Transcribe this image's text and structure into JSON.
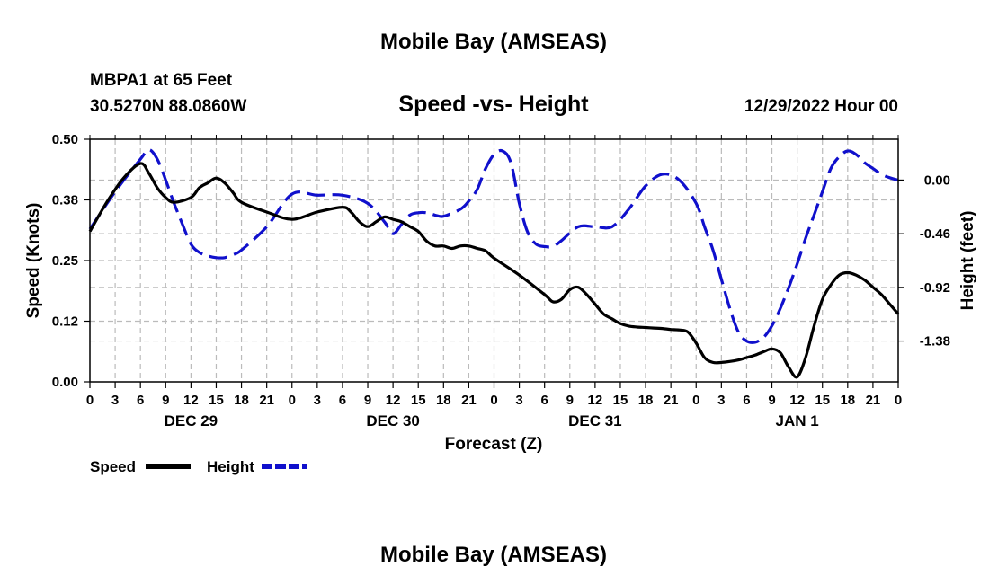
{
  "header": {
    "title": "Mobile Bay (AMSEAS)",
    "station": "MBPA1 at 65 Feet",
    "location": "30.5270N  88.0860W",
    "chart_title": "Speed -vs- Height",
    "run_time": "12/29/2022 Hour 00"
  },
  "footer": {
    "title": "Mobile Bay (AMSEAS)"
  },
  "colors": {
    "speed": "#000000",
    "height": "#1010cc",
    "grid": "#bbbbbb"
  },
  "chart_data": {
    "type": "line",
    "title": "Speed -vs- Height",
    "xlabel": "Forecast (Z)",
    "ylabel": "Speed (Knots)",
    "y2label": "Height (feet)",
    "grid": true,
    "legend_position": "bottom-left",
    "xlim": [
      0,
      96
    ],
    "ylim": [
      0,
      0.5
    ],
    "y2lim": [
      -1.73,
      0.35
    ],
    "x_tick_labels": [
      "0",
      "3",
      "6",
      "9",
      "12",
      "15",
      "18",
      "21",
      "0",
      "3",
      "6",
      "9",
      "12",
      "15",
      "18",
      "21",
      "0",
      "3",
      "6",
      "9",
      "12",
      "15",
      "18",
      "21",
      "0",
      "3",
      "6",
      "9",
      "12",
      "15",
      "18",
      "21",
      "0"
    ],
    "day_labels": [
      {
        "x": 12,
        "label": "DEC 29"
      },
      {
        "x": 36,
        "label": "DEC 30"
      },
      {
        "x": 60,
        "label": "DEC 31"
      },
      {
        "x": 84,
        "label": "JAN 1"
      }
    ],
    "y_ticks": [
      {
        "value": 0.0,
        "label": "0.00"
      },
      {
        "value": 0.125,
        "label": "0.12"
      },
      {
        "value": 0.25,
        "label": "0.25"
      },
      {
        "value": 0.375,
        "label": "0.38"
      },
      {
        "value": 0.5,
        "label": "0.50"
      }
    ],
    "y2_ticks": [
      {
        "value": 0.0,
        "label": "0.00"
      },
      {
        "value": -0.46,
        "label": "-0.46"
      },
      {
        "value": -0.92,
        "label": "-0.92"
      },
      {
        "value": -1.38,
        "label": "-1.38"
      }
    ],
    "series": [
      {
        "name": "Speed",
        "axis": "left",
        "style": "solid",
        "x": [
          0,
          2,
          4,
          6,
          7,
          8,
          9,
          10,
          12,
          13,
          14,
          15,
          16,
          17,
          18,
          21,
          24,
          27,
          30,
          31,
          32,
          33,
          34,
          35,
          36,
          37,
          38,
          39,
          40,
          41,
          42,
          43,
          44,
          45,
          46,
          47,
          48,
          51,
          54,
          55,
          56,
          57,
          58,
          59,
          60,
          61,
          62,
          63,
          64,
          65,
          66,
          67,
          68,
          69,
          70,
          71,
          72,
          73,
          74,
          75,
          76,
          77,
          78,
          79,
          80,
          81,
          82,
          83,
          84,
          85,
          86,
          87,
          88,
          89,
          90,
          91,
          92,
          93,
          94,
          95,
          96
        ],
        "values": [
          0.31,
          0.37,
          0.42,
          0.45,
          0.43,
          0.4,
          0.38,
          0.37,
          0.38,
          0.4,
          0.41,
          0.42,
          0.41,
          0.39,
          0.37,
          0.35,
          0.335,
          0.35,
          0.36,
          0.35,
          0.33,
          0.32,
          0.33,
          0.34,
          0.335,
          0.33,
          0.32,
          0.31,
          0.29,
          0.28,
          0.28,
          0.275,
          0.28,
          0.28,
          0.275,
          0.27,
          0.255,
          0.22,
          0.18,
          0.165,
          0.17,
          0.19,
          0.195,
          0.18,
          0.16,
          0.14,
          0.13,
          0.12,
          0.115,
          0.113,
          0.112,
          0.111,
          0.11,
          0.108,
          0.107,
          0.103,
          0.08,
          0.05,
          0.04,
          0.04,
          0.042,
          0.045,
          0.05,
          0.055,
          0.062,
          0.068,
          0.06,
          0.03,
          0.01,
          0.05,
          0.115,
          0.17,
          0.2,
          0.22,
          0.225,
          0.22,
          0.21,
          0.195,
          0.18,
          0.16,
          0.14
        ]
      },
      {
        "name": "Height",
        "axis": "right",
        "style": "dashed",
        "x": [
          0,
          3,
          6,
          7,
          8,
          9,
          10,
          11,
          12,
          13,
          14,
          15,
          16,
          17,
          18,
          21,
          24,
          27,
          30,
          33,
          35,
          36,
          37,
          38,
          39,
          40,
          41,
          42,
          44,
          45,
          46,
          47,
          48,
          49,
          50,
          51,
          52,
          53,
          54,
          55,
          56,
          58,
          60,
          62,
          64,
          66,
          68,
          70,
          72,
          73,
          74,
          75,
          76,
          77,
          78,
          79,
          80,
          81,
          82,
          83,
          84,
          85,
          86,
          87,
          88,
          89,
          90,
          91,
          92,
          93,
          94,
          95,
          96
        ],
        "values": [
          -0.42,
          -0.1,
          0.18,
          0.26,
          0.18,
          0.0,
          -0.2,
          -0.38,
          -0.55,
          -0.62,
          -0.65,
          -0.665,
          -0.665,
          -0.64,
          -0.6,
          -0.4,
          -0.12,
          -0.13,
          -0.13,
          -0.2,
          -0.36,
          -0.46,
          -0.38,
          -0.3,
          -0.28,
          -0.28,
          -0.3,
          -0.31,
          -0.25,
          -0.18,
          -0.08,
          0.1,
          0.22,
          0.25,
          0.15,
          -0.2,
          -0.45,
          -0.55,
          -0.57,
          -0.57,
          -0.52,
          -0.4,
          -0.4,
          -0.4,
          -0.25,
          -0.05,
          0.05,
          0.0,
          -0.2,
          -0.4,
          -0.6,
          -0.85,
          -1.1,
          -1.3,
          -1.38,
          -1.39,
          -1.35,
          -1.25,
          -1.1,
          -0.92,
          -0.72,
          -0.5,
          -0.3,
          -0.1,
          0.1,
          0.2,
          0.25,
          0.22,
          0.15,
          0.1,
          0.05,
          0.02,
          0.0
        ]
      }
    ]
  }
}
